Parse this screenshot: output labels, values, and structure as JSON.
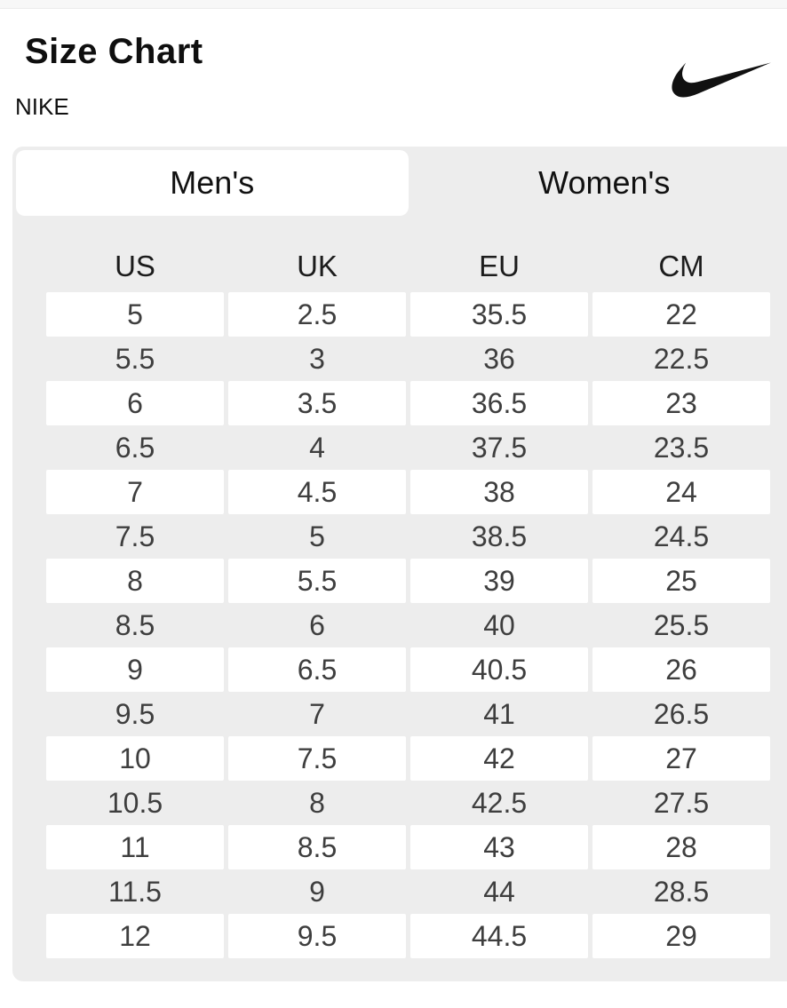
{
  "page": {
    "title": "Size Chart",
    "brand": "NIKE"
  },
  "logo": {
    "icon": "nike-swoosh-icon",
    "color": "#111111"
  },
  "tabs": [
    {
      "label": "Men's",
      "active": true
    },
    {
      "label": "Women's",
      "active": false
    }
  ],
  "table": {
    "columns": [
      "US",
      "UK",
      "EU",
      "CM"
    ],
    "rows": [
      [
        "5",
        "2.5",
        "35.5",
        "22"
      ],
      [
        "5.5",
        "3",
        "36",
        "22.5"
      ],
      [
        "6",
        "3.5",
        "36.5",
        "23"
      ],
      [
        "6.5",
        "4",
        "37.5",
        "23.5"
      ],
      [
        "7",
        "4.5",
        "38",
        "24"
      ],
      [
        "7.5",
        "5",
        "38.5",
        "24.5"
      ],
      [
        "8",
        "5.5",
        "39",
        "25"
      ],
      [
        "8.5",
        "6",
        "40",
        "25.5"
      ],
      [
        "9",
        "6.5",
        "40.5",
        "26"
      ],
      [
        "9.5",
        "7",
        "41",
        "26.5"
      ],
      [
        "10",
        "7.5",
        "42",
        "27"
      ],
      [
        "10.5",
        "8",
        "42.5",
        "27.5"
      ],
      [
        "11",
        "8.5",
        "43",
        "28"
      ],
      [
        "11.5",
        "9",
        "44",
        "28.5"
      ],
      [
        "12",
        "9.5",
        "44.5",
        "29"
      ]
    ]
  },
  "colors": {
    "panel_bg": "#ededed",
    "active_tab_bg": "#ffffff",
    "row_white_bg": "#ffffff",
    "text_primary": "#111111",
    "text_values": "#3e3e3e"
  }
}
